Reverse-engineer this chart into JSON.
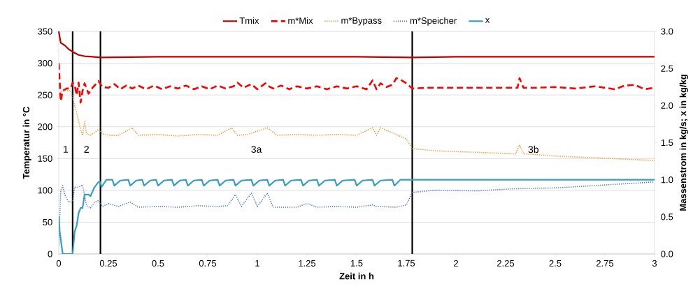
{
  "chart_data": {
    "type": "line",
    "xlabel": "Zeit in h",
    "ylabel": "Temperatur in °C",
    "y2label": "Massenstrom in kg/s; x in kg/kg",
    "xlim": [
      0,
      3
    ],
    "xticks": [
      0,
      0.25,
      0.5,
      0.75,
      1,
      1.25,
      1.5,
      1.75,
      2,
      2.25,
      2.5,
      2.75,
      3
    ],
    "ylim": [
      0,
      350
    ],
    "yticks": [
      0,
      50,
      100,
      150,
      200,
      250,
      300,
      350
    ],
    "y2lim": [
      0,
      3
    ],
    "y2ticks": [
      {
        "value": 0,
        "label": "0.0"
      },
      {
        "value": 0.5,
        "label": "0.5"
      },
      {
        "value": 1,
        "label": "1.0"
      },
      {
        "value": 1.5,
        "label": "1.5"
      },
      {
        "value": 2,
        "label": "2.0"
      },
      {
        "value": 2.5,
        "label": "2.5"
      },
      {
        "value": 3,
        "label": "3.0"
      }
    ],
    "grid": "y",
    "legend": "top",
    "series": [
      {
        "name": "Tmix",
        "color": "#c00000",
        "line_style": "solid",
        "x": [
          0,
          0.01,
          0.03,
          0.05,
          0.07,
          0.1,
          0.13,
          0.17,
          0.21,
          0.5,
          1,
          1.5,
          1.78,
          2,
          2.5,
          3
        ],
        "values": [
          350,
          332,
          328,
          322,
          318,
          313,
          311,
          310,
          309,
          310,
          310,
          310,
          309,
          310,
          310,
          310
        ]
      },
      {
        "name": "m*Mix",
        "color": "#ff0000",
        "line_style": "dashed",
        "axis": "y2",
        "x": [
          0,
          0.01,
          0.02,
          0.04,
          0.06,
          0.07,
          0.08,
          0.09,
          0.1,
          0.11,
          0.12,
          0.13,
          0.15,
          0.17,
          0.19,
          0.2,
          0.22,
          0.25,
          0.28,
          0.31,
          0.34,
          0.37,
          0.4,
          0.44,
          0.48,
          0.52,
          0.56,
          0.6,
          0.64,
          0.68,
          0.72,
          0.76,
          0.8,
          0.84,
          0.88,
          0.9,
          0.93,
          0.97,
          1.0,
          1.04,
          1.05,
          1.08,
          1.12,
          1.16,
          1.2,
          1.25,
          1.3,
          1.35,
          1.4,
          1.45,
          1.5,
          1.55,
          1.58,
          1.6,
          1.62,
          1.65,
          1.68,
          1.7,
          1.72,
          1.75,
          1.78,
          1.85,
          1.95,
          2.05,
          2.15,
          2.25,
          2.31,
          2.32,
          2.34,
          2.4,
          2.5,
          2.6,
          2.7,
          2.8,
          2.85,
          2.9,
          2.95,
          3
        ],
        "values": [
          2.57,
          2.06,
          2.2,
          2.23,
          2.23,
          2.31,
          2.28,
          2.14,
          2.31,
          2.04,
          2.2,
          2.3,
          2.16,
          2.24,
          2.3,
          2.33,
          2.25,
          2.24,
          2.29,
          2.22,
          2.27,
          2.23,
          2.27,
          2.22,
          2.27,
          2.22,
          2.26,
          2.23,
          2.27,
          2.22,
          2.26,
          2.22,
          2.27,
          2.23,
          2.26,
          2.31,
          2.24,
          2.29,
          2.22,
          2.3,
          2.27,
          2.23,
          2.27,
          2.22,
          2.26,
          2.23,
          2.26,
          2.22,
          2.26,
          2.23,
          2.26,
          2.22,
          2.34,
          2.22,
          2.3,
          2.25,
          2.28,
          2.37,
          2.35,
          2.3,
          2.23,
          2.24,
          2.24,
          2.24,
          2.24,
          2.24,
          2.24,
          2.37,
          2.24,
          2.24,
          2.25,
          2.23,
          2.26,
          2.22,
          2.27,
          2.28,
          2.22,
          2.24
        ]
      },
      {
        "name": "m*Bypass",
        "color": "#e8901e",
        "line_style": "dotted",
        "axis": "y2",
        "x": [
          0.01,
          0.03,
          0.06,
          0.07,
          0.09,
          0.11,
          0.12,
          0.13,
          0.14,
          0.16,
          0.2,
          0.22,
          0.26,
          0.3,
          0.37,
          0.4,
          0.5,
          0.6,
          0.7,
          0.8,
          0.87,
          0.9,
          0.95,
          1.05,
          1.1,
          1.2,
          1.3,
          1.4,
          1.5,
          1.58,
          1.6,
          1.62,
          1.7,
          1.75,
          1.78,
          1.9,
          2.1,
          2.3,
          2.32,
          2.34,
          2.5,
          2.75,
          3
        ],
        "values": [
          2.19,
          2.2,
          2.2,
          2.1,
          1.9,
          1.68,
          1.6,
          1.78,
          1.62,
          1.6,
          1.68,
          1.62,
          1.6,
          1.6,
          1.7,
          1.6,
          1.61,
          1.59,
          1.61,
          1.6,
          1.7,
          1.6,
          1.61,
          1.7,
          1.6,
          1.61,
          1.6,
          1.61,
          1.6,
          1.7,
          1.6,
          1.7,
          1.61,
          1.55,
          1.42,
          1.39,
          1.37,
          1.35,
          1.47,
          1.35,
          1.32,
          1.29,
          1.26
        ]
      },
      {
        "name": "m*Speicher",
        "color": "#4472c4",
        "line_style": "dotted",
        "axis": "y2",
        "x": [
          0,
          0.01,
          0.02,
          0.03,
          0.05,
          0.07,
          0.08,
          0.1,
          0.12,
          0.14,
          0.16,
          0.18,
          0.2,
          0.22,
          0.25,
          0.3,
          0.36,
          0.4,
          0.5,
          0.6,
          0.7,
          0.8,
          0.85,
          0.89,
          0.92,
          0.97,
          1.0,
          1.05,
          1.08,
          1.2,
          1.25,
          1.3,
          1.4,
          1.5,
          1.58,
          1.6,
          1.7,
          1.75,
          1.78,
          1.9,
          2.1,
          2.3,
          2.5,
          2.75,
          3
        ],
        "values": [
          0.1,
          0.85,
          0.92,
          0.8,
          0.7,
          0.7,
          0.9,
          0.9,
          0.93,
          0.65,
          0.62,
          0.7,
          0.72,
          0.64,
          0.68,
          0.64,
          0.7,
          0.63,
          0.64,
          0.63,
          0.65,
          0.64,
          0.65,
          0.8,
          0.64,
          0.82,
          0.64,
          0.82,
          0.63,
          0.63,
          0.68,
          0.63,
          0.64,
          0.63,
          0.66,
          0.64,
          0.63,
          0.66,
          0.83,
          0.86,
          0.85,
          0.88,
          0.89,
          0.93,
          0.97
        ]
      },
      {
        "name": "x",
        "color": "#3a9ec2",
        "line_style": "solid",
        "axis": "y2",
        "x": [
          0,
          0.005,
          0.02,
          0.07,
          0.08,
          0.09,
          0.1,
          0.11,
          0.12,
          0.13,
          0.15,
          0.16,
          0.18,
          0.2,
          0.21,
          0.215,
          0.24,
          0.27,
          0.28,
          0.31,
          0.35,
          0.36,
          0.39,
          0.42,
          0.43,
          0.46,
          0.49,
          0.5,
          0.53,
          0.57,
          0.58,
          0.61,
          0.64,
          0.65,
          0.68,
          0.72,
          0.73,
          0.76,
          0.8,
          0.81,
          0.84,
          0.88,
          0.89,
          0.92,
          0.97,
          0.98,
          1.01,
          1.05,
          1.06,
          1.09,
          1.13,
          1.14,
          1.17,
          1.22,
          1.23,
          1.26,
          1.3,
          1.31,
          1.34,
          1.39,
          1.4,
          1.43,
          1.49,
          1.5,
          1.53,
          1.58,
          1.59,
          1.62,
          1.68,
          1.69,
          1.72,
          3
        ],
        "values": [
          0.5,
          0.3,
          0,
          0,
          0.3,
          0.38,
          0.55,
          0.62,
          0.62,
          0.8,
          0.8,
          0.78,
          0.9,
          0.97,
          0.97,
          0.9,
          1.0,
          1.0,
          0.92,
          0.99,
          1.0,
          0.92,
          0.99,
          1.0,
          0.92,
          0.99,
          1.0,
          0.92,
          0.99,
          1.0,
          0.92,
          0.99,
          1.0,
          0.92,
          0.99,
          1.0,
          0.92,
          0.99,
          1.0,
          0.92,
          0.99,
          1.0,
          0.92,
          0.99,
          1.0,
          0.92,
          0.99,
          1.0,
          0.92,
          0.99,
          1.0,
          0.92,
          0.99,
          1.0,
          0.92,
          0.99,
          1.0,
          0.92,
          0.99,
          1.0,
          0.92,
          0.99,
          1.0,
          0.92,
          0.99,
          1.0,
          0.92,
          0.99,
          1.0,
          0.92,
          1.0,
          1.0
        ]
      }
    ],
    "ref_lines": [
      {
        "axis": "x",
        "value": 0.07,
        "color": "#000000"
      },
      {
        "axis": "x",
        "value": 0.21,
        "color": "#000000"
      },
      {
        "axis": "x",
        "value": 1.78,
        "color": "#000000"
      }
    ],
    "annotations": [
      "1",
      "2",
      "3a",
      "3b"
    ]
  }
}
